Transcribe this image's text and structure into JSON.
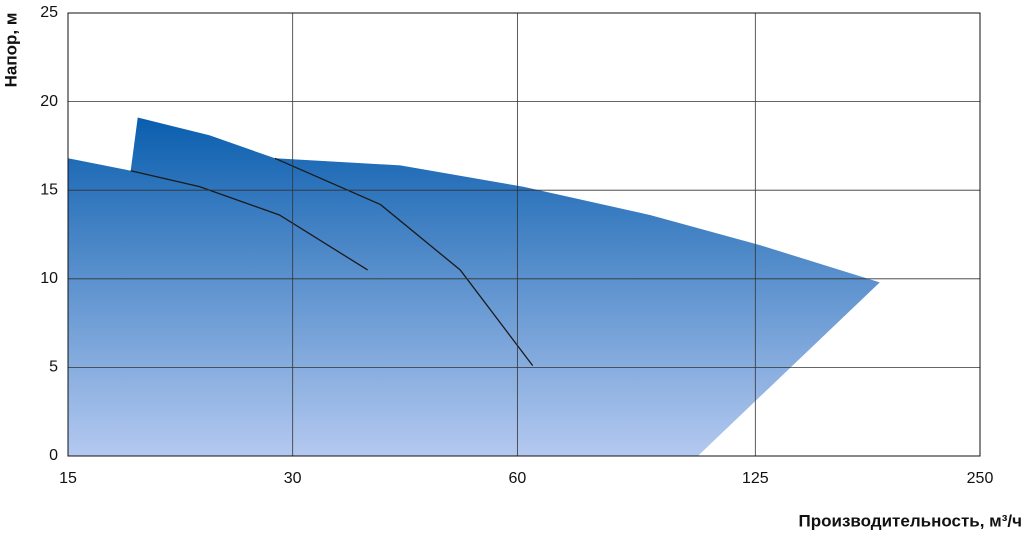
{
  "chart_data": {
    "type": "area",
    "x_label": "Производительность, м³/ч",
    "y_label": "Напор, м",
    "xscale": "log",
    "xlim": [
      15,
      250
    ],
    "xticks": [
      15,
      30,
      60,
      125,
      250
    ],
    "ylim": [
      0,
      25
    ],
    "yticks": [
      0,
      5,
      10,
      15,
      20,
      25
    ],
    "grid": true,
    "gradient": [
      "#0a5eae",
      "#b4c9f0"
    ],
    "line_color": "#1a1a1a",
    "area": {
      "x": [
        15,
        18.2,
        18.6,
        23.2,
        28.4,
        41.8,
        61,
        90.3,
        126.8,
        183.5,
        104.7,
        15
      ],
      "y": [
        16.8,
        16.1,
        19.1,
        18.1,
        16.8,
        16.4,
        15.2,
        13.6,
        11.9,
        9.8,
        0,
        0
      ]
    },
    "curves": [
      {
        "x": [
          18.2,
          22.5,
          28.8,
          37.8
        ],
        "y": [
          16.1,
          15.2,
          13.6,
          10.5
        ]
      },
      {
        "x": [
          28.4,
          39.3,
          50.3,
          62.9
        ],
        "y": [
          16.8,
          14.2,
          10.5,
          5.1
        ]
      }
    ]
  }
}
